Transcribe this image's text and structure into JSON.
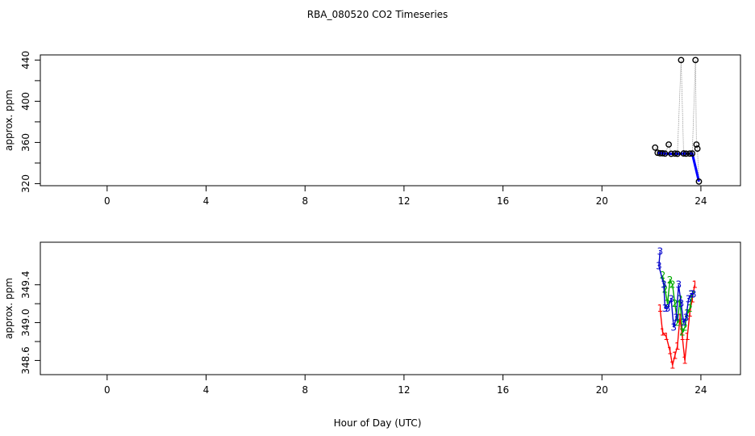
{
  "title": "RBA_080520  CO2 Timeseries",
  "xlabel": "Hour of Day (UTC)",
  "chart_data": [
    {
      "type": "scatter",
      "title": "RBA_080520  CO2 Timeseries",
      "xlabel": "",
      "ylabel": "approx. ppm",
      "xlim": [
        -2.7,
        25.6
      ],
      "ylim": [
        318,
        445
      ],
      "xticks": [
        "0",
        "4",
        "8",
        "12",
        "16",
        "20",
        "24"
      ],
      "yticks": [
        "320",
        "360",
        "400",
        "440"
      ],
      "grid": false,
      "colors": {
        "marker": "#000000",
        "fit": "#0000ff",
        "line": "#999999"
      },
      "series": [
        {
          "values": [
            {
              "x": 22.15,
              "y": 355
            },
            {
              "x": 22.25,
              "y": 350
            },
            {
              "x": 22.35,
              "y": 349.5
            },
            {
              "x": 22.45,
              "y": 349.5
            },
            {
              "x": 22.55,
              "y": 349.2
            },
            {
              "x": 22.7,
              "y": 358
            },
            {
              "x": 22.8,
              "y": 349
            },
            {
              "x": 22.95,
              "y": 349.2
            },
            {
              "x": 23.05,
              "y": 349
            },
            {
              "x": 23.2,
              "y": 440
            },
            {
              "x": 23.3,
              "y": 349.3
            },
            {
              "x": 23.4,
              "y": 349.1
            },
            {
              "x": 23.55,
              "y": 349.2
            },
            {
              "x": 23.65,
              "y": 349.3
            },
            {
              "x": 23.78,
              "y": 440
            },
            {
              "x": 23.82,
              "y": 358
            },
            {
              "x": 23.86,
              "y": 354
            },
            {
              "x": 23.92,
              "y": 322
            }
          ]
        }
      ]
    },
    {
      "type": "line",
      "xlabel": "Hour of Day (UTC)",
      "ylabel": "approx. ppm",
      "xlim": [
        -2.7,
        25.6
      ],
      "ylim": [
        348.45,
        349.85
      ],
      "xticks": [
        "0",
        "4",
        "8",
        "12",
        "16",
        "20",
        "24"
      ],
      "yticks": [
        "348.6",
        "349.0",
        "349.4"
      ],
      "grid": false,
      "series": [
        {
          "marker": "1",
          "color": "#ff0000",
          "values": [
            {
              "x": 22.35,
              "y": 349.15
            },
            {
              "x": 22.45,
              "y": 348.9
            },
            {
              "x": 22.6,
              "y": 348.85
            },
            {
              "x": 22.75,
              "y": 348.7
            },
            {
              "x": 22.85,
              "y": 348.55
            },
            {
              "x": 22.95,
              "y": 348.65
            },
            {
              "x": 23.05,
              "y": 348.75
            },
            {
              "x": 23.15,
              "y": 349.05
            },
            {
              "x": 23.25,
              "y": 348.85
            },
            {
              "x": 23.35,
              "y": 348.6
            },
            {
              "x": 23.45,
              "y": 348.85
            },
            {
              "x": 23.55,
              "y": 349.1
            },
            {
              "x": 23.65,
              "y": 349.25
            },
            {
              "x": 23.75,
              "y": 349.4
            }
          ]
        },
        {
          "marker": "2",
          "color": "#00aa00",
          "values": [
            {
              "x": 22.45,
              "y": 349.5
            },
            {
              "x": 22.55,
              "y": 349.35
            },
            {
              "x": 22.65,
              "y": 349.2
            },
            {
              "x": 22.75,
              "y": 349.45
            },
            {
              "x": 22.85,
              "y": 349.4
            },
            {
              "x": 22.95,
              "y": 349.2
            },
            {
              "x": 23.05,
              "y": 349.0
            },
            {
              "x": 23.15,
              "y": 349.25
            },
            {
              "x": 23.25,
              "y": 348.9
            },
            {
              "x": 23.35,
              "y": 348.95
            },
            {
              "x": 23.45,
              "y": 349.1
            },
            {
              "x": 23.55,
              "y": 349.15
            },
            {
              "x": 23.65,
              "y": 349.3
            }
          ]
        },
        {
          "marker": "3",
          "color": "#0000cc",
          "values": [
            {
              "x": 22.35,
              "y": 349.75
            },
            {
              "x": 22.3,
              "y": 349.6
            },
            {
              "x": 22.5,
              "y": 349.4
            },
            {
              "x": 22.55,
              "y": 349.15
            },
            {
              "x": 22.65,
              "y": 349.15
            },
            {
              "x": 22.8,
              "y": 349.25
            },
            {
              "x": 22.9,
              "y": 348.95
            },
            {
              "x": 23.0,
              "y": 349.05
            },
            {
              "x": 23.1,
              "y": 349.4
            },
            {
              "x": 23.2,
              "y": 349.2
            },
            {
              "x": 23.3,
              "y": 349.0
            },
            {
              "x": 23.4,
              "y": 349.05
            },
            {
              "x": 23.5,
              "y": 349.25
            },
            {
              "x": 23.6,
              "y": 349.3
            },
            {
              "x": 23.7,
              "y": 349.3
            }
          ]
        }
      ]
    }
  ]
}
